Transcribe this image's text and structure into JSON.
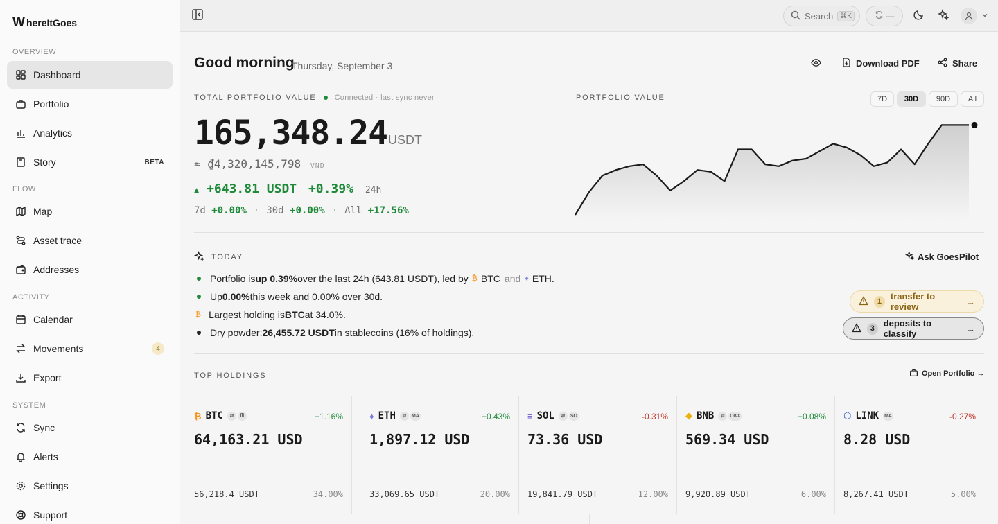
{
  "brand": {
    "name": "hereItGoes",
    "mark": "W"
  },
  "sidebar": {
    "sections": [
      "OVERVIEW",
      "FLOW",
      "ACTIVITY",
      "SYSTEM"
    ],
    "items": [
      {
        "label": "Dashboard",
        "icon": "dashboard-icon",
        "active": true
      },
      {
        "label": "Portfolio",
        "icon": "briefcase-icon"
      },
      {
        "label": "Analytics",
        "icon": "bar-chart-icon"
      },
      {
        "label": "Story",
        "icon": "book-icon",
        "badge": "BETA"
      },
      {
        "label": "Map",
        "icon": "map-icon"
      },
      {
        "label": "Asset trace",
        "icon": "route-icon"
      },
      {
        "label": "Addresses",
        "icon": "wallet-icon"
      },
      {
        "label": "Calendar",
        "icon": "calendar-icon"
      },
      {
        "label": "Movements",
        "icon": "arrows-icon",
        "count": "4"
      },
      {
        "label": "Export",
        "icon": "download-icon"
      },
      {
        "label": "Sync",
        "icon": "refresh-icon"
      },
      {
        "label": "Alerts",
        "icon": "bell-icon"
      },
      {
        "label": "Settings",
        "icon": "gear-icon"
      },
      {
        "label": "Support",
        "icon": "life-ring-icon"
      }
    ]
  },
  "topbar": {
    "search_label": "Search",
    "search_kbd": "⌘K",
    "sync_text": "—"
  },
  "header": {
    "greeting": "Good morning",
    "date": "Thursday, September 3",
    "download": "Download PDF",
    "share": "Share"
  },
  "portfolio": {
    "label": "TOTAL PORTFOLIO VALUE",
    "status": "Connected · last sync never",
    "total": "165,348.24",
    "unit": "USDT",
    "vnd_value": "≈ ₫4,320,145,798",
    "vnd_unit": "VND",
    "change_abs": "+643.81 USDT",
    "change_pct": "+0.39%",
    "change_period": "24h",
    "periods": [
      {
        "label": "7d",
        "value": "+0.00%"
      },
      {
        "label": "30d",
        "value": "+0.00%"
      },
      {
        "label": "All",
        "value": "+17.56%"
      }
    ],
    "sep": "·"
  },
  "chart": {
    "label": "PORTFOLIO VALUE",
    "ranges": [
      "7D",
      "30D",
      "90D",
      "All"
    ],
    "active_range": "30D",
    "color": "#1a1a1a"
  },
  "chart_data": {
    "type": "area",
    "title": "PORTFOLIO VALUE",
    "x": [
      1,
      2,
      3,
      4,
      5,
      6,
      7,
      8,
      9,
      10,
      11,
      12,
      13,
      14,
      15,
      16,
      17,
      18,
      19,
      20,
      21,
      22,
      23,
      24,
      25,
      26,
      27,
      28,
      29,
      30
    ],
    "series": [
      {
        "values": [
          100,
          112,
          121,
          124,
          126,
          127,
          121,
          113,
          118,
          124,
          123,
          118,
          135,
          135,
          127,
          126,
          129,
          130,
          134,
          138,
          136,
          132,
          126,
          128,
          135,
          127,
          138,
          148,
          148,
          148
        ]
      }
    ],
    "ylim": [
      100,
      150
    ],
    "grid": false,
    "legend": "none"
  },
  "today": {
    "label": "TODAY",
    "ask": "Ask GoesPilot",
    "b1": {
      "a": "Portfolio is ",
      "b": "up 0.39%",
      "c": " over the last 24h (643.81 USDT), led by ",
      "btc": "BTC",
      "and": "and",
      "eth": "ETH."
    },
    "b2": {
      "a": "Up ",
      "b": "0.00%",
      "c": " this week and 0.00% over 30d."
    },
    "b3": {
      "a": "Largest holding is ",
      "b": "BTC",
      "c": " at 34.0%."
    },
    "b4": {
      "a": "Dry powder: ",
      "b": "26,455.72 USDT",
      "c": " in stablecoins (16% of holdings)."
    },
    "pills": [
      {
        "count": "1",
        "label": "transfer to review"
      },
      {
        "count": "3",
        "label": "deposits to classify"
      }
    ]
  },
  "holdings": {
    "label": "TOP HOLDINGS",
    "open": "Open Portfolio →",
    "items": [
      {
        "symbol": "BTC",
        "icon": "bitcoin-icon",
        "color": "#f7931a",
        "tags": [
          "⇄",
          "ᗰ"
        ],
        "change": "+1.16%",
        "up": true,
        "price": "64,163.21 USD",
        "qty": "56,218.4 USDT",
        "share": "34.00%"
      },
      {
        "symbol": "ETH",
        "icon": "ethereum-icon",
        "color": "#7a7ae0",
        "tags": [
          "⇄",
          "MA"
        ],
        "change": "+0.43%",
        "up": true,
        "price": "1,897.12 USD",
        "qty": "33,069.65 USDT",
        "share": "20.00%"
      },
      {
        "symbol": "SOL",
        "icon": "solana-icon",
        "color": "#6a5acd",
        "tags": [
          "⇄",
          "SO"
        ],
        "change": "-0.31%",
        "up": false,
        "price": "73.36 USD",
        "qty": "19,841.79 USDT",
        "share": "12.00%"
      },
      {
        "symbol": "BNB",
        "icon": "bnb-icon",
        "color": "#e8b30b",
        "tags": [
          "⇄",
          "OKX"
        ],
        "change": "+0.08%",
        "up": true,
        "price": "569.34 USD",
        "qty": "9,920.89 USDT",
        "share": "6.00%"
      },
      {
        "symbol": "LINK",
        "icon": "chainlink-icon",
        "color": "#2a5ada",
        "tags": [
          "MA"
        ],
        "change": "-0.27%",
        "up": false,
        "price": "8.28 USD",
        "qty": "8,267.41 USDT",
        "share": "5.00%"
      }
    ]
  },
  "colors": {
    "up": "#1f8a3a",
    "down": "#c0392b",
    "accent_warn": "#a8791a"
  }
}
